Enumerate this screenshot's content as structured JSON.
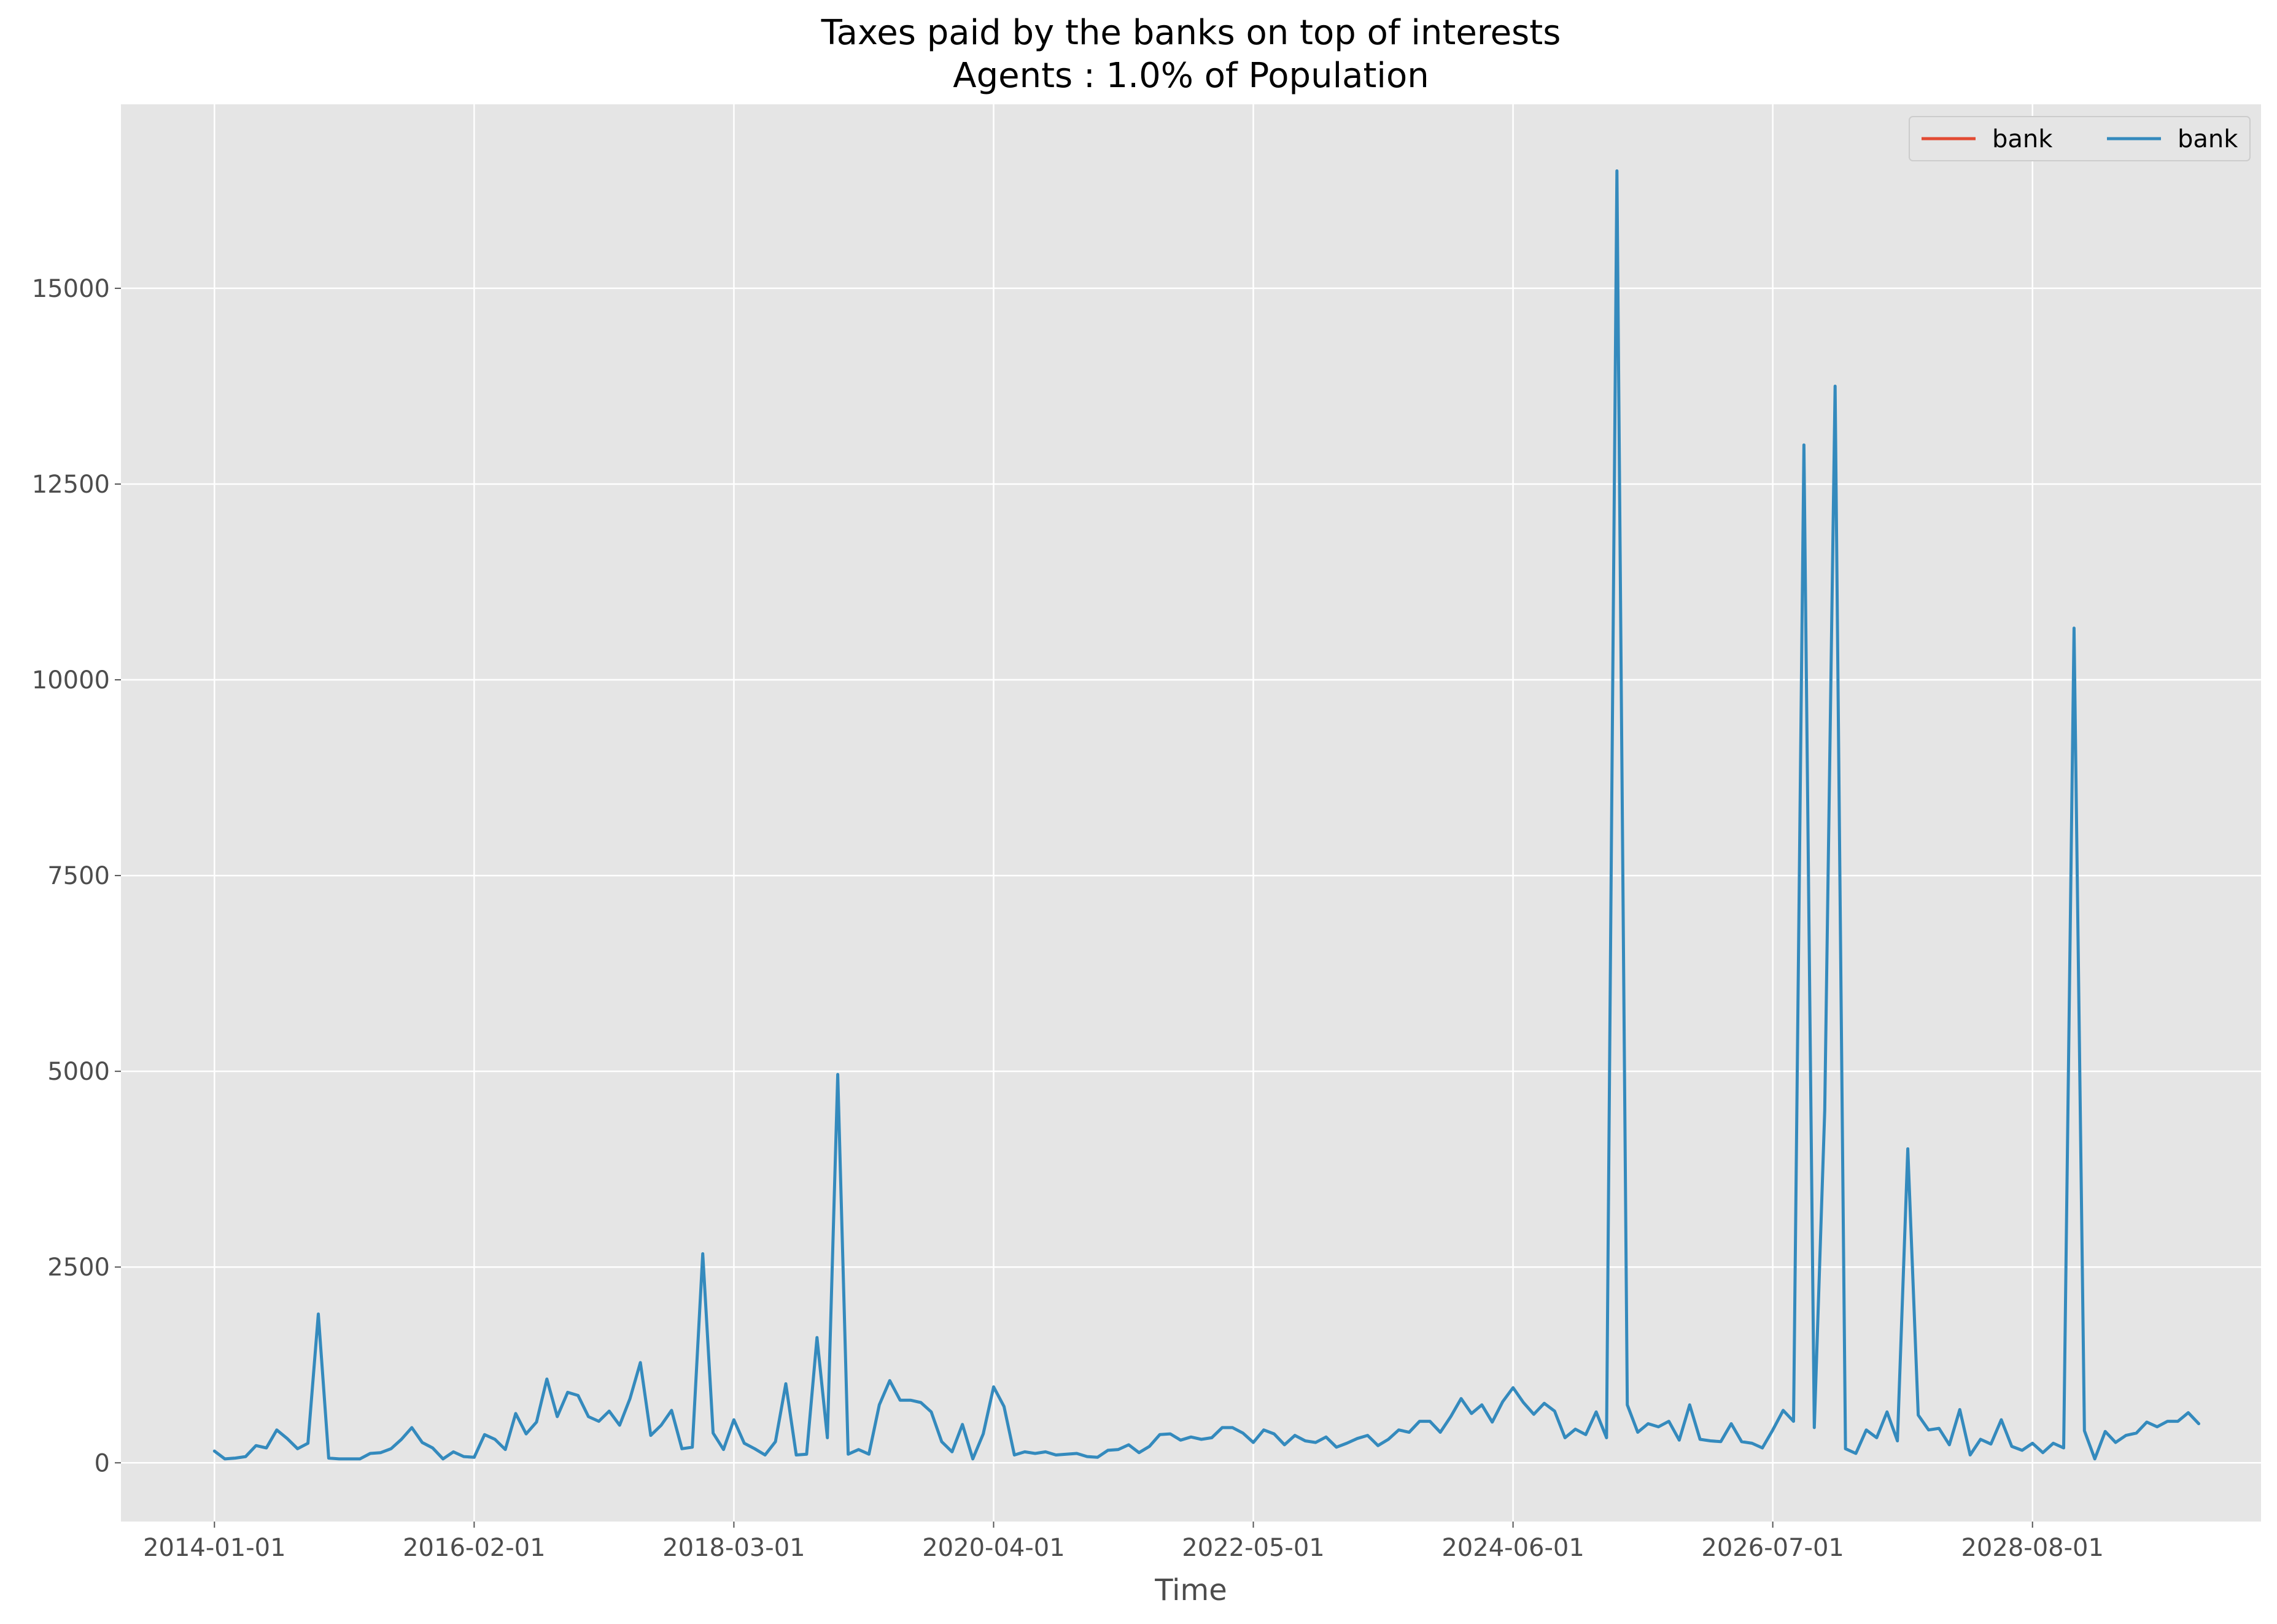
{
  "chart_data": {
    "type": "line",
    "title": "Taxes paid by the banks on top of interests",
    "subtitle": "Agents : 1.0% of Population",
    "xlabel": "Time",
    "ylabel": "",
    "x_ticks": [
      "2014-01-01",
      "2016-02-01",
      "2018-03-01",
      "2020-04-01",
      "2022-05-01",
      "2024-06-01",
      "2026-07-01",
      "2028-08-01"
    ],
    "y_ticks": [
      0,
      2500,
      5000,
      7500,
      10000,
      12500,
      15000
    ],
    "y_tick_labels": [
      "0",
      "2500",
      "5000",
      "7500",
      "10000",
      "12500",
      "15000"
    ],
    "xlim": [
      "2013-04-01",
      "2030-06-01"
    ],
    "ylim": [
      -750,
      17350
    ],
    "grid": true,
    "background": "#e5e5e5",
    "legend": {
      "position": "upper right",
      "columns": 2
    },
    "series": [
      {
        "name": "bank",
        "color": "#e24a33",
        "x_start": "2014-01-01",
        "step_months": 1,
        "values": []
      },
      {
        "name": "bank",
        "color": "#348abd",
        "x_start": "2014-01-01",
        "step_months": 1,
        "values": [
          150,
          50,
          60,
          80,
          220,
          190,
          420,
          310,
          180,
          250,
          1900,
          60,
          50,
          50,
          50,
          120,
          130,
          180,
          300,
          450,
          260,
          190,
          50,
          140,
          80,
          70,
          360,
          300,
          170,
          630,
          370,
          520,
          1070,
          590,
          900,
          860,
          590,
          530,
          660,
          480,
          820,
          1280,
          350,
          480,
          670,
          180,
          200,
          2670,
          380,
          170,
          550,
          250,
          180,
          100,
          270,
          1010,
          100,
          110,
          1600,
          320,
          4960,
          110,
          170,
          110,
          740,
          1050,
          800,
          800,
          770,
          650,
          270,
          140,
          490,
          50,
          370,
          970,
          720,
          100,
          140,
          120,
          140,
          100,
          110,
          120,
          80,
          70,
          160,
          170,
          230,
          130,
          210,
          360,
          370,
          290,
          330,
          300,
          320,
          450,
          450,
          380,
          260,
          420,
          370,
          230,
          350,
          280,
          260,
          330,
          200,
          250,
          310,
          350,
          220,
          300,
          420,
          390,
          530,
          530,
          390,
          590,
          820,
          630,
          740,
          520,
          780,
          960,
          770,
          620,
          760,
          660,
          320,
          430,
          360,
          650,
          320,
          16500,
          740,
          390,
          500,
          460,
          530,
          290,
          740,
          300,
          280,
          270,
          500,
          270,
          250,
          190,
          420,
          670,
          530,
          13000,
          450,
          4500,
          13750,
          180,
          120,
          420,
          320,
          650,
          280,
          4010,
          610,
          420,
          440,
          230,
          680,
          100,
          300,
          240,
          550,
          210,
          160,
          250,
          130,
          250,
          190,
          10660,
          410,
          50,
          400,
          260,
          350,
          380,
          520,
          460,
          530,
          530,
          640,
          500
        ]
      }
    ]
  }
}
